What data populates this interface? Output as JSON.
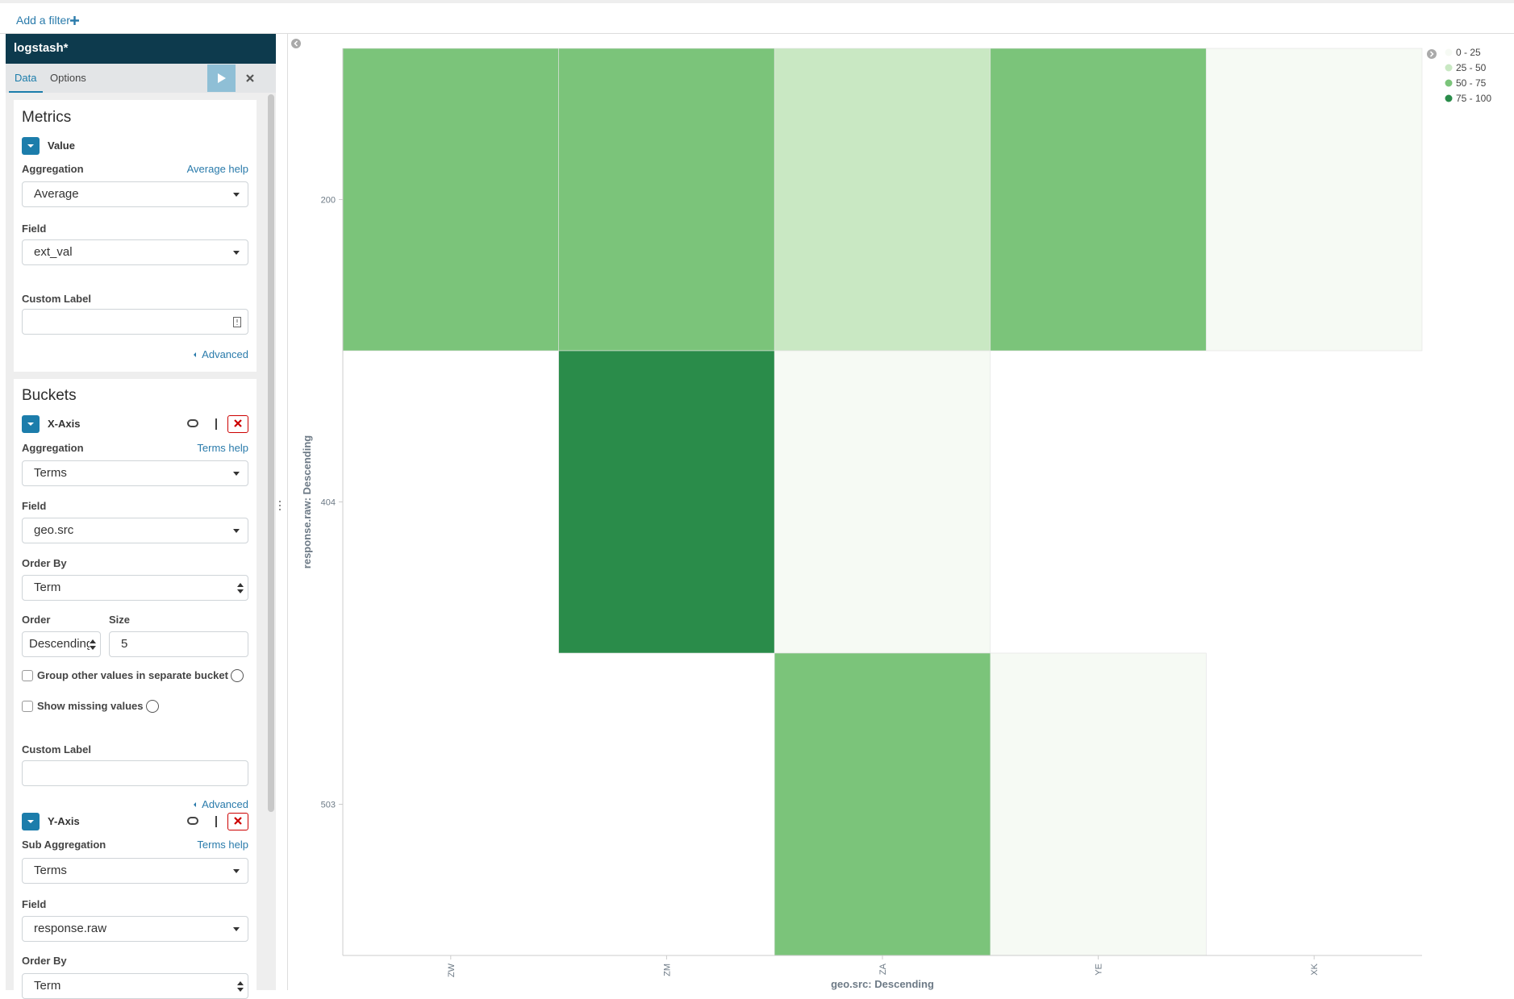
{
  "filter_bar": {
    "add_filter": "Add a filter"
  },
  "sidebar": {
    "index": "logstash*",
    "tabs": [
      "Data",
      "Options"
    ],
    "metrics": {
      "title": "Metrics",
      "agg_name": "Value",
      "aggregation_label": "Aggregation",
      "help": "Average help",
      "aggregation": "Average",
      "field_label": "Field",
      "field": "ext_val",
      "custom_label": "Custom Label",
      "advanced": "Advanced"
    },
    "buckets": {
      "title": "Buckets",
      "x_axis": {
        "name": "X-Axis",
        "aggregation_label": "Aggregation",
        "help": "Terms help",
        "aggregation": "Terms",
        "field_label": "Field",
        "field": "geo.src",
        "order_by_label": "Order By",
        "order_by": "Term",
        "order_label": "Order",
        "order": "Descending",
        "size_label": "Size",
        "size": 5,
        "group_other": "Group other values in separate bucket",
        "show_missing": "Show missing values",
        "custom_label": "Custom Label",
        "advanced": "Advanced"
      },
      "y_axis": {
        "name": "Y-Axis",
        "aggregation_label": "Sub Aggregation",
        "help": "Terms help",
        "aggregation": "Terms",
        "field_label": "Field",
        "field": "response.raw",
        "order_by_label": "Order By",
        "order_by": "Term"
      }
    }
  },
  "chart_data": {
    "type": "heatmap",
    "x_label": "geo.src: Descending",
    "y_label": "response.raw: Descending",
    "x": [
      "ZW",
      "ZM",
      "ZA",
      "YE",
      "XK"
    ],
    "y": [
      "200",
      "404",
      "503"
    ],
    "values": [
      [
        60,
        60,
        35,
        60,
        10
      ],
      [
        null,
        90,
        10,
        null,
        null
      ],
      [
        null,
        null,
        60,
        10,
        null
      ]
    ],
    "zlim": [
      0,
      100
    ],
    "legend": [
      {
        "label": "0 - 25",
        "color": "#f6faf4"
      },
      {
        "label": "25 - 50",
        "color": "#c9e8c3"
      },
      {
        "label": "50 - 75",
        "color": "#7bc47a"
      },
      {
        "label": "75 - 100",
        "color": "#2a8c4a"
      }
    ]
  }
}
